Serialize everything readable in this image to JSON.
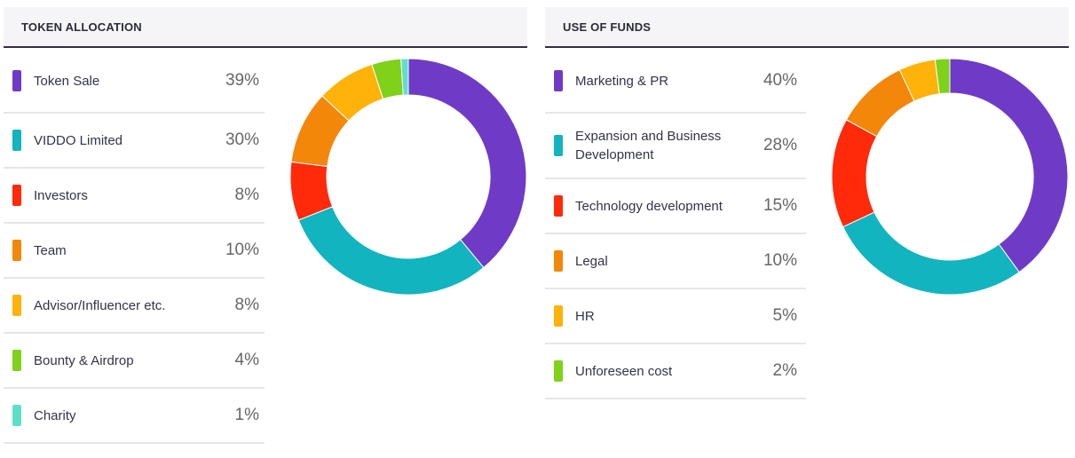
{
  "token_allocation": {
    "title": "TOKEN ALLOCATION",
    "items": [
      {
        "label": "Token Sale",
        "percent_text": "39%",
        "color": "#6f3bc6"
      },
      {
        "label": "VIDDO Limited",
        "percent_text": "30%",
        "color": "#12b4bf"
      },
      {
        "label": "Investors",
        "percent_text": "8%",
        "color": "#ff2a0a"
      },
      {
        "label": "Team",
        "percent_text": "10%",
        "color": "#f3870a"
      },
      {
        "label": "Advisor/Influencer etc.",
        "percent_text": "8%",
        "color": "#ffb20a"
      },
      {
        "label": "Bounty & Airdrop",
        "percent_text": "4%",
        "color": "#7fd11a"
      },
      {
        "label": "Charity",
        "percent_text": "1%",
        "color": "#5ee0c8"
      }
    ]
  },
  "use_of_funds": {
    "title": "USE OF FUNDS",
    "items": [
      {
        "label": "Marketing & PR",
        "percent_text": "40%",
        "color": "#6f3bc6"
      },
      {
        "label": "Expansion and Business Development",
        "percent_text": "28%",
        "color": "#12b4bf"
      },
      {
        "label": "Technology development",
        "percent_text": "15%",
        "color": "#ff2a0a"
      },
      {
        "label": "Legal",
        "percent_text": "10%",
        "color": "#f3870a"
      },
      {
        "label": "HR",
        "percent_text": "5%",
        "color": "#ffb20a"
      },
      {
        "label": "Unforeseen cost",
        "percent_text": "2%",
        "color": "#7fd11a"
      }
    ]
  },
  "chart_data": [
    {
      "type": "pie",
      "title": "TOKEN ALLOCATION",
      "categories": [
        "Token Sale",
        "VIDDO Limited",
        "Investors",
        "Team",
        "Advisor/Influencer etc.",
        "Bounty & Airdrop",
        "Charity"
      ],
      "values": [
        39,
        30,
        8,
        10,
        8,
        4,
        1
      ],
      "colors": [
        "#6f3bc6",
        "#12b4bf",
        "#ff2a0a",
        "#f3870a",
        "#ffb20a",
        "#7fd11a",
        "#5ee0c8"
      ],
      "style": "donut"
    },
    {
      "type": "pie",
      "title": "USE OF FUNDS",
      "categories": [
        "Marketing & PR",
        "Expansion and Business Development",
        "Technology development",
        "Legal",
        "HR",
        "Unforeseen cost"
      ],
      "values": [
        40,
        28,
        15,
        10,
        5,
        2
      ],
      "colors": [
        "#6f3bc6",
        "#12b4bf",
        "#ff2a0a",
        "#f3870a",
        "#ffb20a",
        "#7fd11a"
      ],
      "style": "donut"
    }
  ]
}
